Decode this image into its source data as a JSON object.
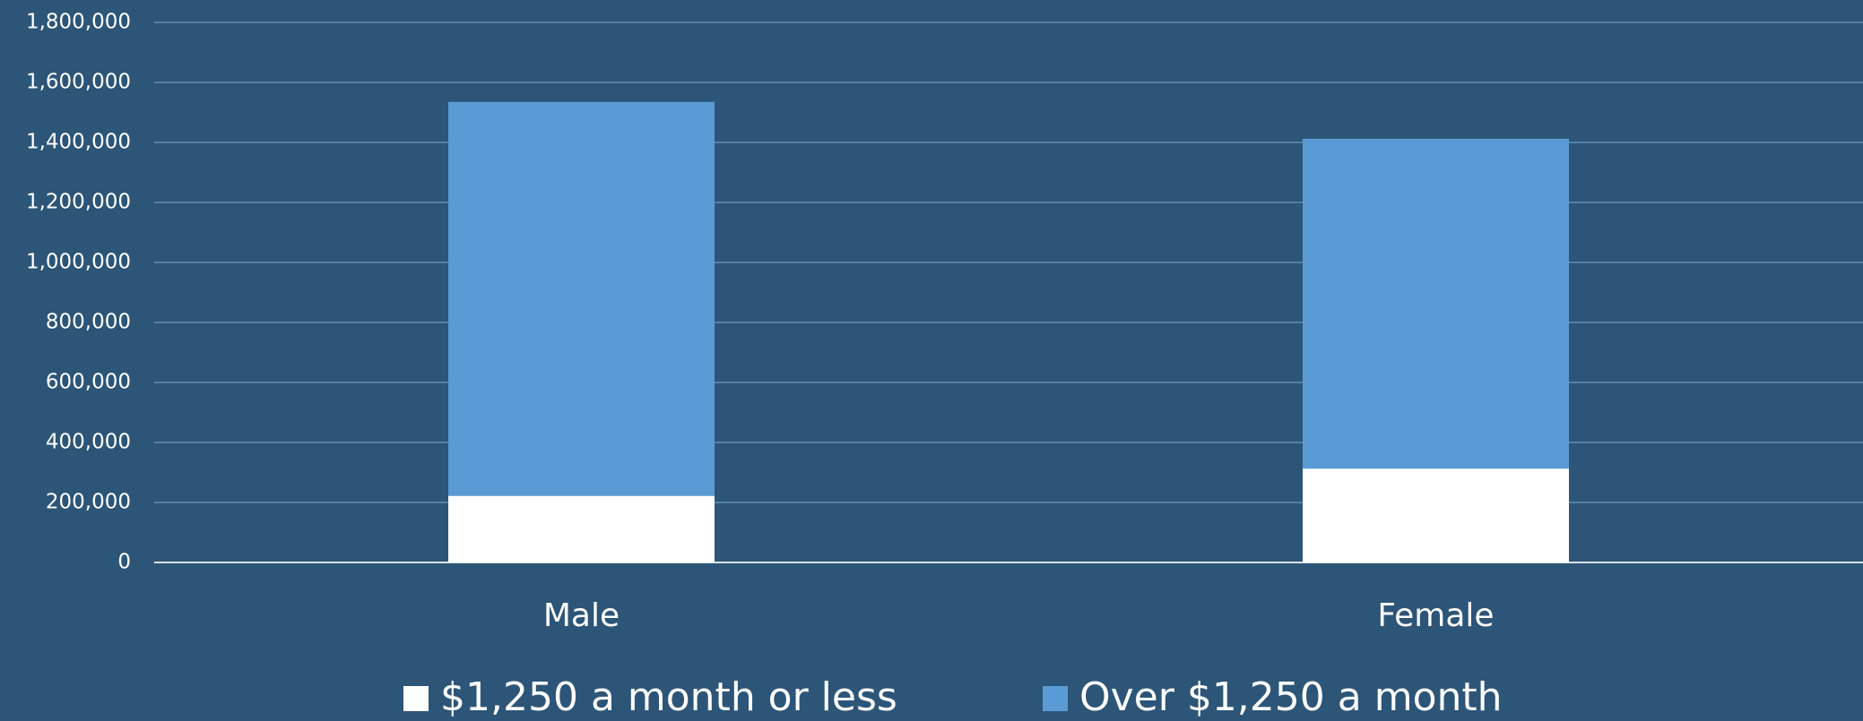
{
  "chart_data": {
    "type": "stacked_bar",
    "categories": [
      "Male",
      "Female"
    ],
    "series": [
      {
        "name": "$1,250 a month or less",
        "color": "#ffffff",
        "values": [
          222000,
          313000
        ]
      },
      {
        "name": "Over $1,250 a month",
        "color": "#5b9bd5",
        "values": [
          1313000,
          1099000
        ]
      }
    ],
    "ylim": [
      0,
      1800000
    ],
    "yticks": [
      0,
      {
        "value": 200000,
        "label": "200,000"
      },
      {
        "value": 400000,
        "label": "400,000"
      },
      {
        "value": 600000,
        "label": "600,000"
      },
      {
        "value": 800000,
        "label": "800,000"
      },
      {
        "value": 1000000,
        "label": "1,000,000"
      },
      {
        "value": 1200000,
        "label": "1,200,000"
      },
      {
        "value": 1400000,
        "label": "1,400,000"
      },
      {
        "value": 1600000,
        "label": "1,600,000"
      },
      {
        "value": 1800000,
        "label": "1,800,000"
      }
    ],
    "grid": true,
    "legend": "bottom"
  }
}
